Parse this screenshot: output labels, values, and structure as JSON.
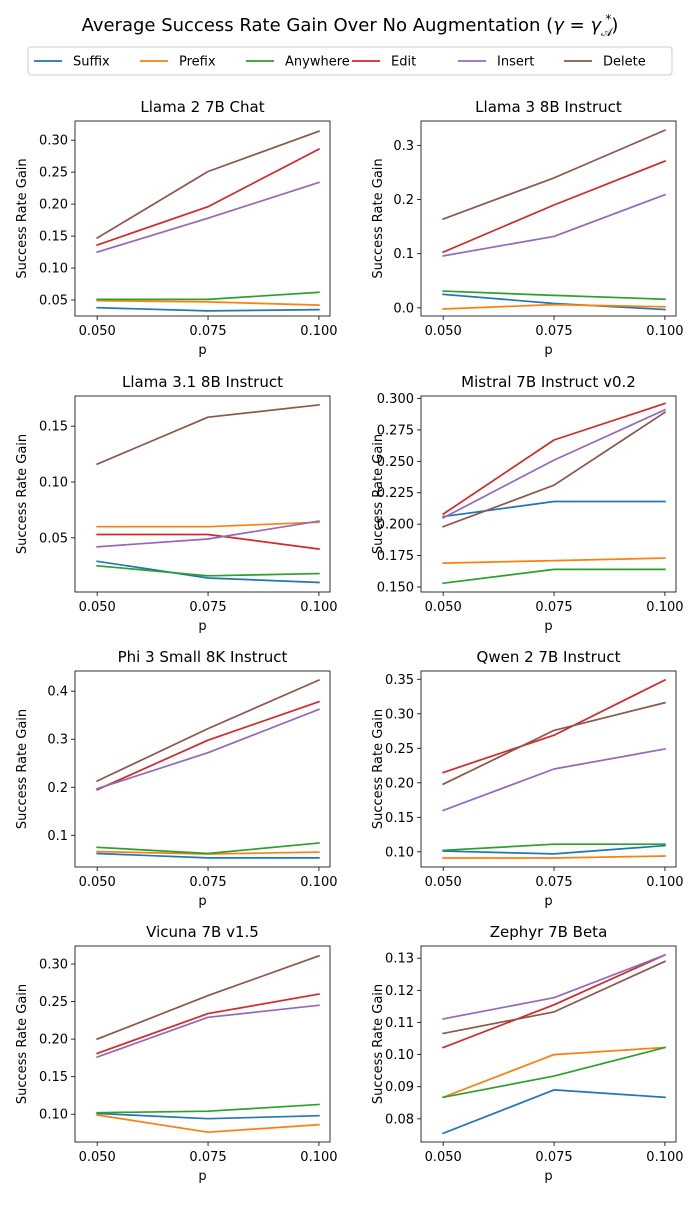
{
  "figure": {
    "title_prefix": "Average Success Rate Gain Over No Augmentation (",
    "title_gamma": "γ",
    "title_eq": " = ",
    "title_gamma2": "γ",
    "title_sup": "*",
    "title_sub": "𝒜",
    "title_suffix": ")"
  },
  "legend": [
    {
      "label": "Suffix",
      "color": "#1f77b4"
    },
    {
      "label": "Prefix",
      "color": "#ff7f0e"
    },
    {
      "label": "Anywhere",
      "color": "#2ca02c"
    },
    {
      "label": "Edit",
      "color": "#d62728"
    },
    {
      "label": "Insert",
      "color": "#9467bd"
    },
    {
      "label": "Delete",
      "color": "#8c564b"
    }
  ],
  "chart_data": [
    {
      "type": "line",
      "title": "Llama 2 7B Chat",
      "xlabel": "p",
      "ylabel": "Success Rate Gain",
      "x": [
        0.05,
        0.075,
        0.1
      ],
      "xticks": [
        "0.050",
        "0.075",
        "0.100"
      ],
      "xlim": [
        0.045,
        0.1025
      ],
      "ylim": [
        0.025,
        0.33
      ],
      "yticks": [
        0.05,
        0.1,
        0.15,
        0.2,
        0.25,
        0.3
      ],
      "ytick_labels": [
        "0.05",
        "0.10",
        "0.15",
        "0.20",
        "0.25",
        "0.30"
      ],
      "series": [
        {
          "name": "Suffix",
          "values": [
            0.038,
            0.033,
            0.035
          ]
        },
        {
          "name": "Prefix",
          "values": [
            0.049,
            0.047,
            0.042
          ]
        },
        {
          "name": "Anywhere",
          "values": [
            0.051,
            0.051,
            0.062
          ]
        },
        {
          "name": "Edit",
          "values": [
            0.136,
            0.196,
            0.286
          ]
        },
        {
          "name": "Insert",
          "values": [
            0.125,
            0.178,
            0.234
          ]
        },
        {
          "name": "Delete",
          "values": [
            0.147,
            0.251,
            0.314
          ]
        }
      ]
    },
    {
      "type": "line",
      "title": "Llama 3 8B Instruct",
      "xlabel": "p",
      "ylabel": "Success Rate Gain",
      "x": [
        0.05,
        0.075,
        0.1
      ],
      "xticks": [
        "0.050",
        "0.075",
        "0.100"
      ],
      "xlim": [
        0.045,
        0.1025
      ],
      "ylim": [
        -0.015,
        0.345
      ],
      "yticks": [
        0.0,
        0.1,
        0.2,
        0.3
      ],
      "ytick_labels": [
        "0.0",
        "0.1",
        "0.2",
        "0.3"
      ],
      "series": [
        {
          "name": "Suffix",
          "values": [
            0.025,
            0.008,
            -0.003
          ]
        },
        {
          "name": "Prefix",
          "values": [
            -0.002,
            0.006,
            0.002
          ]
        },
        {
          "name": "Anywhere",
          "values": [
            0.031,
            0.023,
            0.016
          ]
        },
        {
          "name": "Edit",
          "values": [
            0.103,
            0.19,
            0.271
          ]
        },
        {
          "name": "Insert",
          "values": [
            0.096,
            0.132,
            0.209
          ]
        },
        {
          "name": "Delete",
          "values": [
            0.164,
            0.24,
            0.328
          ]
        }
      ]
    },
    {
      "type": "line",
      "title": "Llama 3.1 8B Instruct",
      "xlabel": "p",
      "ylabel": "Success Rate Gain",
      "x": [
        0.05,
        0.075,
        0.1
      ],
      "xticks": [
        "0.050",
        "0.075",
        "0.100"
      ],
      "xlim": [
        0.045,
        0.1025
      ],
      "ylim": [
        0.0015,
        0.177
      ],
      "yticks": [
        0.05,
        0.1,
        0.15
      ],
      "ytick_labels": [
        "0.05",
        "0.10",
        "0.15"
      ],
      "series": [
        {
          "name": "Suffix",
          "values": [
            0.029,
            0.014,
            0.01
          ]
        },
        {
          "name": "Prefix",
          "values": [
            0.06,
            0.06,
            0.064
          ]
        },
        {
          "name": "Anywhere",
          "values": [
            0.025,
            0.016,
            0.018
          ]
        },
        {
          "name": "Edit",
          "values": [
            0.053,
            0.053,
            0.04
          ]
        },
        {
          "name": "Insert",
          "values": [
            0.042,
            0.049,
            0.065
          ]
        },
        {
          "name": "Delete",
          "values": [
            0.116,
            0.158,
            0.169
          ]
        }
      ]
    },
    {
      "type": "line",
      "title": "Mistral 7B Instruct v0.2",
      "xlabel": "p",
      "ylabel": "Success Rate Gain",
      "x": [
        0.05,
        0.075,
        0.1
      ],
      "xticks": [
        "0.050",
        "0.075",
        "0.100"
      ],
      "xlim": [
        0.045,
        0.1025
      ],
      "ylim": [
        0.146,
        0.302
      ],
      "yticks": [
        0.15,
        0.175,
        0.2,
        0.225,
        0.25,
        0.275,
        0.3
      ],
      "ytick_labels": [
        "0.150",
        "0.175",
        "0.200",
        "0.225",
        "0.250",
        "0.275",
        "0.300"
      ],
      "series": [
        {
          "name": "Suffix",
          "values": [
            0.206,
            0.218,
            0.218
          ]
        },
        {
          "name": "Prefix",
          "values": [
            0.169,
            0.171,
            0.173
          ]
        },
        {
          "name": "Anywhere",
          "values": [
            0.153,
            0.164,
            0.164
          ]
        },
        {
          "name": "Edit",
          "values": [
            0.208,
            0.267,
            0.296
          ]
        },
        {
          "name": "Insert",
          "values": [
            0.205,
            0.251,
            0.291
          ]
        },
        {
          "name": "Delete",
          "values": [
            0.198,
            0.231,
            0.289
          ]
        }
      ]
    },
    {
      "type": "line",
      "title": "Phi 3 Small 8K Instruct",
      "xlabel": "p",
      "ylabel": "Success Rate Gain",
      "x": [
        0.05,
        0.075,
        0.1
      ],
      "xticks": [
        "0.050",
        "0.075",
        "0.100"
      ],
      "xlim": [
        0.045,
        0.1025
      ],
      "ylim": [
        0.034,
        0.442
      ],
      "yticks": [
        0.1,
        0.2,
        0.3,
        0.4
      ],
      "ytick_labels": [
        "0.1",
        "0.2",
        "0.3",
        "0.4"
      ],
      "series": [
        {
          "name": "Suffix",
          "values": [
            0.062,
            0.053,
            0.053
          ]
        },
        {
          "name": "Prefix",
          "values": [
            0.066,
            0.061,
            0.065
          ]
        },
        {
          "name": "Anywhere",
          "values": [
            0.075,
            0.062,
            0.084
          ]
        },
        {
          "name": "Edit",
          "values": [
            0.195,
            0.298,
            0.378
          ]
        },
        {
          "name": "Insert",
          "values": [
            0.197,
            0.272,
            0.362
          ]
        },
        {
          "name": "Delete",
          "values": [
            0.213,
            0.322,
            0.423
          ]
        }
      ]
    },
    {
      "type": "line",
      "title": "Qwen 2 7B Instruct",
      "xlabel": "p",
      "ylabel": "Success Rate Gain",
      "x": [
        0.05,
        0.075,
        0.1
      ],
      "xticks": [
        "0.050",
        "0.075",
        "0.100"
      ],
      "xlim": [
        0.045,
        0.1025
      ],
      "ylim": [
        0.078,
        0.362
      ],
      "yticks": [
        0.1,
        0.15,
        0.2,
        0.25,
        0.3,
        0.35
      ],
      "ytick_labels": [
        "0.10",
        "0.15",
        "0.20",
        "0.25",
        "0.30",
        "0.35"
      ],
      "series": [
        {
          "name": "Suffix",
          "values": [
            0.101,
            0.097,
            0.109
          ]
        },
        {
          "name": "Prefix",
          "values": [
            0.091,
            0.091,
            0.094
          ]
        },
        {
          "name": "Anywhere",
          "values": [
            0.102,
            0.111,
            0.111
          ]
        },
        {
          "name": "Edit",
          "values": [
            0.215,
            0.269,
            0.349
          ]
        },
        {
          "name": "Insert",
          "values": [
            0.16,
            0.22,
            0.249
          ]
        },
        {
          "name": "Delete",
          "values": [
            0.198,
            0.276,
            0.316
          ]
        }
      ]
    },
    {
      "type": "line",
      "title": "Vicuna 7B v1.5",
      "xlabel": "p",
      "ylabel": "Success Rate Gain",
      "x": [
        0.05,
        0.075,
        0.1
      ],
      "xticks": [
        "0.050",
        "0.075",
        "0.100"
      ],
      "xlim": [
        0.045,
        0.1025
      ],
      "ylim": [
        0.063,
        0.324
      ],
      "yticks": [
        0.1,
        0.15,
        0.2,
        0.25,
        0.3
      ],
      "ytick_labels": [
        "0.10",
        "0.15",
        "0.20",
        "0.25",
        "0.30"
      ],
      "series": [
        {
          "name": "Suffix",
          "values": [
            0.101,
            0.094,
            0.098
          ]
        },
        {
          "name": "Prefix",
          "values": [
            0.099,
            0.076,
            0.086
          ]
        },
        {
          "name": "Anywhere",
          "values": [
            0.102,
            0.104,
            0.113
          ]
        },
        {
          "name": "Edit",
          "values": [
            0.181,
            0.234,
            0.26
          ]
        },
        {
          "name": "Insert",
          "values": [
            0.176,
            0.229,
            0.245
          ]
        },
        {
          "name": "Delete",
          "values": [
            0.2,
            0.258,
            0.311
          ]
        }
      ]
    },
    {
      "type": "line",
      "title": "Zephyr 7B Beta",
      "xlabel": "p",
      "ylabel": "Success Rate Gain",
      "x": [
        0.05,
        0.075,
        0.1
      ],
      "xticks": [
        "0.050",
        "0.075",
        "0.100"
      ],
      "xlim": [
        0.045,
        0.1025
      ],
      "ylim": [
        0.0728,
        0.1338
      ],
      "yticks": [
        0.08,
        0.09,
        0.1,
        0.11,
        0.12,
        0.13
      ],
      "ytick_labels": [
        "0.08",
        "0.09",
        "0.10",
        "0.11",
        "0.12",
        "0.13"
      ],
      "series": [
        {
          "name": "Suffix",
          "values": [
            0.0755,
            0.089,
            0.0867
          ]
        },
        {
          "name": "Prefix",
          "values": [
            0.0867,
            0.1,
            0.1022
          ]
        },
        {
          "name": "Anywhere",
          "values": [
            0.0867,
            0.0933,
            0.1022
          ]
        },
        {
          "name": "Edit",
          "values": [
            0.1022,
            0.1155,
            0.131
          ]
        },
        {
          "name": "Insert",
          "values": [
            0.1111,
            0.1177,
            0.131
          ]
        },
        {
          "name": "Delete",
          "values": [
            0.1066,
            0.1133,
            0.129
          ]
        }
      ]
    }
  ]
}
